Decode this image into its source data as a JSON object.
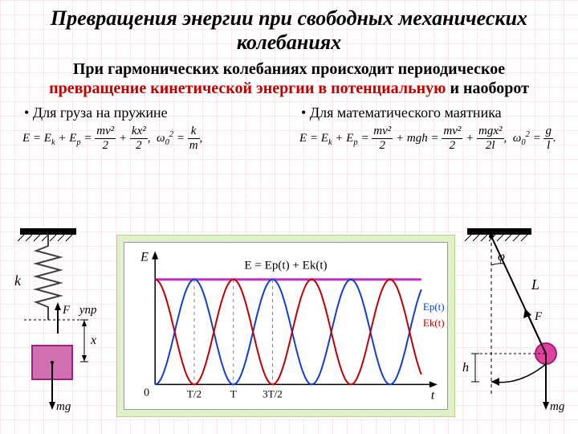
{
  "title": "Превращения энергии при свободных механических колебаниях",
  "subtitle_plain1": "При гармонических колебаниях происходит периодическое ",
  "subtitle_red": "превращение кинетической энергии в потенциальную",
  "subtitle_plain2": " и наоборот",
  "col_left": {
    "label": "Для груза на пружине",
    "formula_prefix": "E = E",
    "k_sub": "k",
    "plus": " + E",
    "p_sub": "p",
    "eq": " = ",
    "frac1_n": "mv²",
    "frac1_d": "2",
    "frac2_n": "kx²",
    "frac2_d": "2",
    "omega_lhs": "ω",
    "omega_sub": "0",
    "omega_sup": "2",
    "omega_eq": " = ",
    "omega_n": "k",
    "omega_d": "m"
  },
  "col_right": {
    "label": "Для математического маятника",
    "formula_prefix": "E = E",
    "k_sub": "k",
    "plus": " + E",
    "p_sub": "p",
    "eq": " = ",
    "frac1_n": "mv²",
    "frac1_d": "2",
    "mgh": " + mgh = ",
    "frac2_n": "mv²",
    "frac2_d": "2",
    "frac3_n": "mgx²",
    "frac3_d": "2l",
    "omega_lhs": "ω",
    "omega_sub": "0",
    "omega_sup": "2",
    "omega_eq": " = ",
    "omega_n": "g",
    "omega_d": "l"
  },
  "spring": {
    "k_label": "k",
    "F_label": "F⃗упр",
    "x_label": "x",
    "mg_label": "mg⃗",
    "spring_color": "#404040",
    "mass_fill": "#d070b0",
    "mass_stroke": "#a02080"
  },
  "chart": {
    "type": "line",
    "title_eq": "E = Ep(t) + Ek(t)",
    "y_label": "E",
    "x_label": "t",
    "x_ticks": [
      "0",
      "T/2",
      "T",
      "3T/2"
    ],
    "ep_label": "Ep(t)",
    "ek_label": "Ek(t)",
    "colors": {
      "ek": "#c00000",
      "ep": "#1040d0",
      "total": "#c030c0",
      "axis": "#000000",
      "tick_dash": "#808080"
    },
    "xlim": [
      0,
      6.8
    ],
    "ylim": [
      0,
      1.3
    ],
    "periods_shown": 3.4,
    "amplitude": 1.0,
    "line_width": 2
  },
  "pendulum": {
    "phi_label": "φ",
    "L_label": "L",
    "F_label": "F⃗",
    "h_label": "h",
    "mg_label": "mg⃗",
    "bob_fill": "#e040a0",
    "bob_stroke": "#a02070"
  }
}
